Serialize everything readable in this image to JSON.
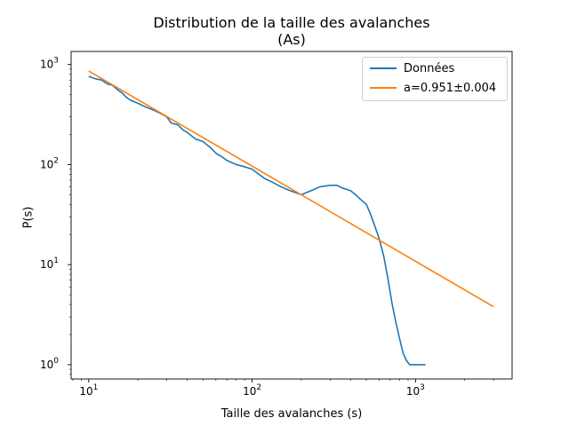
{
  "chart_data": {
    "type": "line",
    "title": "Distribution de la taille des avalanches",
    "subtitle": "(As)",
    "xlabel": "Taille des avalanches (s)",
    "ylabel": "P(s)",
    "xscale": "log",
    "yscale": "log",
    "xlim": [
      7.8,
      3900
    ],
    "ylim": [
      0.72,
      1350
    ],
    "x_ticks": [
      {
        "value": 10,
        "base": "10",
        "exp": "1"
      },
      {
        "value": 100,
        "base": "10",
        "exp": "2"
      },
      {
        "value": 1000,
        "base": "10",
        "exp": "3"
      }
    ],
    "y_ticks": [
      {
        "value": 1,
        "base": "10",
        "exp": "0"
      },
      {
        "value": 10,
        "base": "10",
        "exp": "1"
      },
      {
        "value": 100,
        "base": "10",
        "exp": "2"
      },
      {
        "value": 1000,
        "base": "10",
        "exp": "3"
      }
    ],
    "grid": false,
    "legend_position": "top-right",
    "series": [
      {
        "name": "Données",
        "color": "#1f77b4",
        "x": [
          10,
          11,
          12,
          13,
          14,
          15,
          16,
          17,
          18,
          20,
          22,
          25,
          28,
          30,
          32,
          35,
          38,
          40,
          45,
          50,
          55,
          60,
          65,
          70,
          80,
          90,
          100,
          110,
          120,
          130,
          150,
          170,
          200,
          230,
          260,
          300,
          330,
          360,
          400,
          430,
          460,
          500,
          530,
          560,
          600,
          640,
          680,
          720,
          760,
          800,
          840,
          880,
          920,
          960,
          1000,
          1050,
          1100,
          1150
        ],
        "y": [
          760,
          720,
          700,
          640,
          620,
          560,
          520,
          470,
          440,
          410,
          380,
          350,
          320,
          300,
          260,
          250,
          220,
          210,
          180,
          170,
          150,
          130,
          120,
          110,
          100,
          95,
          90,
          80,
          72,
          68,
          60,
          55,
          50,
          55,
          60,
          62,
          62,
          58,
          55,
          50,
          45,
          40,
          32,
          25,
          18,
          12,
          7,
          4,
          2.6,
          1.8,
          1.3,
          1.1,
          1.0,
          1.0,
          1.0,
          1.0,
          1.0,
          1.0
        ]
      },
      {
        "name": "a=0.951±0.004",
        "color": "#ff7f0e",
        "x": [
          10,
          3000
        ],
        "y": [
          860,
          3.8
        ]
      }
    ]
  }
}
